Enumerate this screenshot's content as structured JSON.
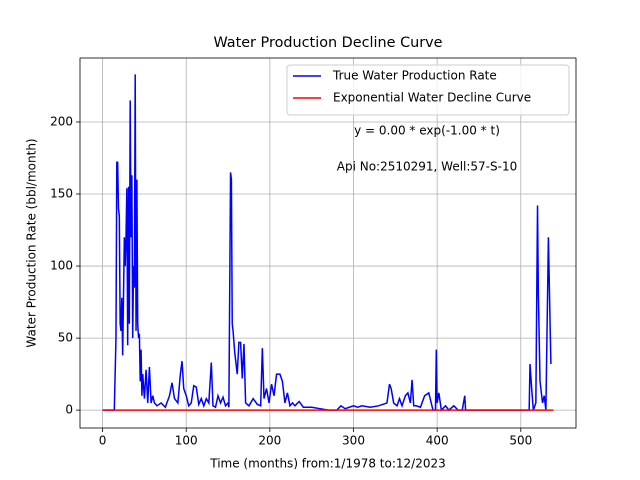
{
  "chart_data": {
    "type": "line",
    "title": "Water Production Decline Curve",
    "xlabel": "Time (months) from:1/1978 to:12/2023",
    "ylabel": "Water Production Rate (bbl/month)",
    "annotations": [
      "y = 0.00 * exp(-1.00 * t)",
      "Api No:2510291, Well:57-S-10"
    ],
    "xlim": [
      -27,
      566
    ],
    "ylim": [
      -12.4,
      244.4
    ],
    "xticks": [
      0,
      100,
      200,
      300,
      400,
      500
    ],
    "yticks": [
      0,
      50,
      100,
      150,
      200
    ],
    "grid": true,
    "legend": "upper right",
    "series": [
      {
        "name": "True Water Production Rate",
        "color": "#0000ff",
        "x": [
          0,
          14,
          16,
          17,
          18,
          19,
          20,
          21,
          22,
          23,
          24,
          25,
          26,
          27,
          28,
          29,
          30,
          31,
          32,
          33,
          34,
          35,
          36,
          37,
          38,
          39,
          40,
          41,
          42,
          43,
          44,
          45,
          46,
          47,
          48,
          50,
          52,
          54,
          56,
          58,
          60,
          62,
          65,
          70,
          75,
          80,
          83,
          86,
          90,
          93,
          95,
          97,
          100,
          103,
          106,
          109,
          112,
          115,
          118,
          121,
          124,
          127,
          130,
          132,
          135,
          138,
          141,
          144,
          147,
          150,
          151,
          153,
          154,
          155,
          156,
          158,
          161,
          163,
          165,
          167,
          169,
          171,
          175,
          180,
          185,
          189,
          191,
          193,
          196,
          199,
          202,
          205,
          208,
          212,
          215,
          218,
          221,
          224,
          227,
          230,
          235,
          240,
          250,
          260,
          270,
          280,
          285,
          290,
          295,
          300,
          305,
          310,
          320,
          330,
          340,
          343,
          345,
          348,
          352,
          355,
          358,
          362,
          365,
          368,
          370,
          372,
          375,
          380,
          385,
          390,
          395,
          398,
          399,
          400,
          402,
          405,
          410,
          414,
          420,
          425,
          430,
          433,
          434,
          440,
          500,
          510,
          511,
          513,
          515,
          518,
          520,
          521,
          523,
          526,
          528,
          530,
          533,
          535,
          536
        ],
        "values": [
          0,
          0,
          50,
          172,
          172,
          140,
          135,
          60,
          55,
          78,
          38,
          78,
          120,
          100,
          120,
          154,
          45,
          155,
          60,
          215,
          120,
          163,
          50,
          100,
          85,
          233,
          55,
          160,
          60,
          50,
          53,
          20,
          42,
          10,
          25,
          8,
          28,
          5,
          30,
          5,
          10,
          5,
          3,
          5,
          2,
          10,
          19,
          8,
          5,
          25,
          34,
          15,
          10,
          3,
          5,
          17,
          16,
          4,
          8,
          3,
          8,
          5,
          33,
          3,
          2,
          10,
          5,
          9,
          3,
          5,
          2,
          165,
          160,
          60,
          55,
          40,
          25,
          47,
          47,
          22,
          46,
          5,
          3,
          8,
          4,
          3,
          43,
          8,
          15,
          5,
          18,
          10,
          25,
          25,
          20,
          5,
          12,
          3,
          5,
          3,
          6,
          2,
          2,
          1,
          0,
          0,
          3,
          1,
          2,
          3,
          2,
          3,
          2,
          3,
          5,
          18,
          15,
          5,
          3,
          8,
          3,
          10,
          12,
          5,
          21,
          3,
          3,
          2,
          10,
          12,
          0,
          0,
          42,
          5,
          12,
          0,
          3,
          0,
          3,
          0,
          0,
          10,
          0,
          0,
          0,
          0,
          32,
          15,
          0,
          5,
          142,
          80,
          20,
          5,
          10,
          0,
          120,
          60,
          32
        ]
      },
      {
        "name": "Exponential Water Decline Curve",
        "color": "#ff0000",
        "x": [
          0,
          539
        ],
        "values": [
          0,
          0
        ]
      }
    ]
  }
}
